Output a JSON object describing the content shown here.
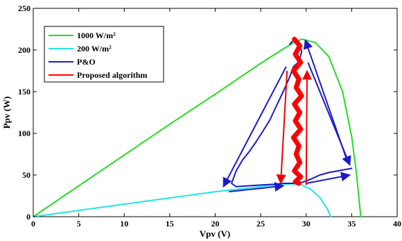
{
  "chart_data": {
    "type": "line",
    "xlabel": "Vpv (V)",
    "ylabel": "Ppv (W)",
    "xlim": [
      0,
      40
    ],
    "ylim": [
      0,
      250
    ],
    "xticks": [
      0,
      5,
      10,
      15,
      20,
      25,
      30,
      35,
      40
    ],
    "yticks": [
      0,
      50,
      100,
      150,
      200,
      250
    ],
    "grid": false,
    "legend_position": "top-left",
    "series": [
      {
        "name": "1000 W/m²",
        "color": "#22dd22",
        "x": [
          0,
          5,
          10,
          15,
          20,
          25,
          27,
          28.5,
          29.5,
          31,
          32.5,
          34,
          35,
          35.5,
          36
        ],
        "y": [
          0,
          37,
          74,
          111,
          147,
          184,
          198,
          208,
          213,
          209,
          192,
          150,
          96,
          55,
          0
        ]
      },
      {
        "name": "200 W/m²",
        "color": "#22e5e5",
        "x": [
          0,
          5,
          10,
          15,
          20,
          25,
          27,
          28.5,
          29.5,
          30.5,
          31.5,
          32.3,
          32.7
        ],
        "y": [
          0,
          7.5,
          15,
          22.5,
          30,
          36,
          38.5,
          39.5,
          38,
          33,
          23,
          10,
          0
        ]
      },
      {
        "name": "P&O",
        "color": "#1a1acc",
        "x": [
          28.2,
          28.6,
          29.2,
          29.5,
          29.2,
          28.6,
          28.2,
          27.8,
          27.3,
          26.6,
          26.0,
          25.2,
          24.5,
          23.8,
          23.0,
          22.3,
          21.8,
          22.3,
          23.5,
          25.0,
          26.5,
          27.5,
          28.5,
          29.5,
          30.5,
          31.5,
          32.5,
          33.5,
          34.5,
          35.0
        ],
        "y": [
          207,
          212,
          210,
          198,
          186,
          180,
          168,
          158,
          146,
          130,
          116,
          102,
          90,
          79,
          68,
          55,
          40,
          36,
          37,
          38,
          39,
          40,
          40,
          41,
          45,
          50,
          53,
          55,
          57,
          58
        ]
      },
      {
        "name": "Proposed algorithm",
        "color": "#ff0000",
        "x": [
          28.7,
          29.3,
          28.8,
          29.4,
          28.6,
          29.2,
          28.9,
          29.5,
          28.7,
          29.3,
          28.8,
          29.4,
          28.6,
          29.2,
          28.9,
          29.3,
          28.7,
          29.4,
          28.8,
          29.2
        ],
        "y": [
          213,
          205,
          195,
          185,
          175,
          165,
          155,
          145,
          135,
          125,
          115,
          105,
          95,
          85,
          75,
          65,
          55,
          48,
          42,
          40
        ]
      }
    ],
    "annotations": [
      {
        "type": "arrow",
        "color": "#1a1acc",
        "from": [
          27.8,
          180
        ],
        "to": [
          20.9,
          36
        ]
      },
      {
        "type": "arrow",
        "color": "#1a1acc",
        "from": [
          30.2,
          185
        ],
        "to": [
          34.8,
          62
        ]
      },
      {
        "type": "arrow",
        "color": "#1a1acc",
        "from": [
          34.6,
          64
        ],
        "to": [
          29.9,
          212
        ]
      },
      {
        "type": "arrow",
        "color": "#1a1acc",
        "from": [
          21.5,
          30
        ],
        "to": [
          27.5,
          37
        ]
      },
      {
        "type": "arrow",
        "color": "#1a1acc",
        "from": [
          30.0,
          40
        ],
        "to": [
          34.8,
          50
        ]
      },
      {
        "type": "arrow",
        "color": "#ee0000",
        "from": [
          27.9,
          175
        ],
        "to": [
          27.2,
          40
        ]
      },
      {
        "type": "arrow",
        "color": "#ee0000",
        "from": [
          30.0,
          38
        ],
        "to": [
          30.1,
          175
        ]
      }
    ]
  }
}
